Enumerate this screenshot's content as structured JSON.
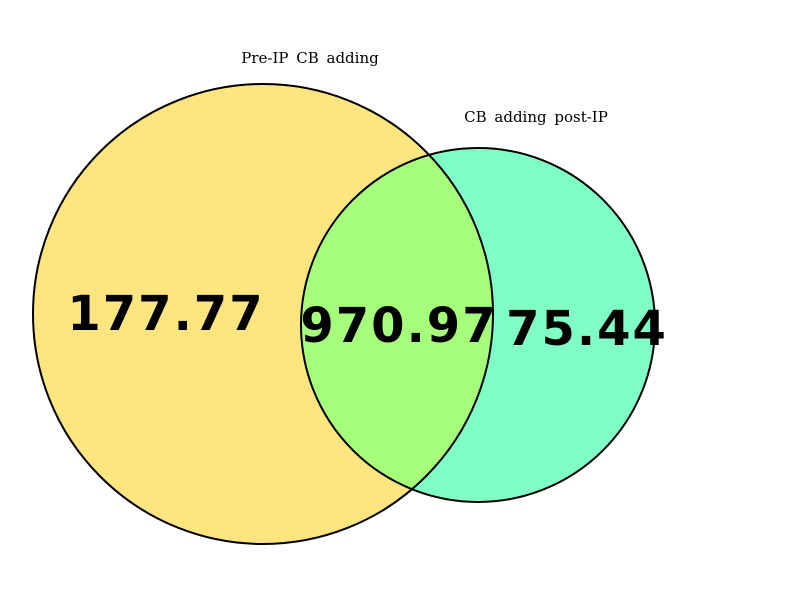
{
  "sets": [
    {
      "label": "Pre-IP  CB  adding",
      "color": "#FFE57F"
    },
    {
      "label": "CB  adding  post-IP",
      "color": "#7FFFC6"
    }
  ],
  "overlap_color": "#A6FF7A",
  "regions": {
    "only_a": "177.77",
    "intersection": "970.97",
    "only_b": "75.44"
  }
}
